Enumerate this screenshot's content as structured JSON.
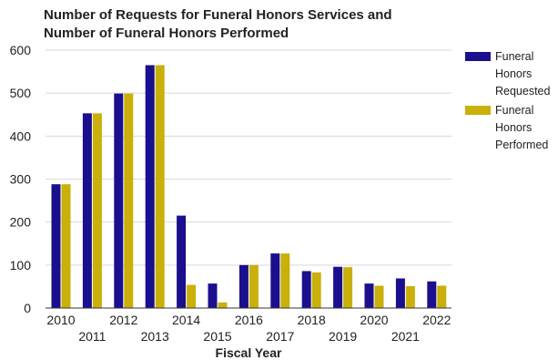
{
  "chart_data": {
    "type": "bar",
    "title_lines": [
      "Number of Requests for Funeral Honors Services and",
      "Number of Funeral Honors Performed"
    ],
    "xlabel": "Fiscal Year",
    "ylabel": "",
    "ylim": [
      0,
      600
    ],
    "yticks": [
      0,
      100,
      200,
      300,
      400,
      500,
      600
    ],
    "grid": true,
    "legend_position": "right",
    "categories": [
      "2010",
      "2011",
      "2012",
      "2013",
      "2014",
      "2015",
      "2016",
      "2017",
      "2018",
      "2019",
      "2020",
      "2021",
      "2022"
    ],
    "series": [
      {
        "name": "Funeral Honors Requested",
        "legend_lines": [
          "Funeral",
          "Honors",
          "Requested"
        ],
        "color": "#1a0f8c",
        "values": [
          288,
          453,
          499,
          565,
          215,
          57,
          100,
          127,
          86,
          96,
          57,
          69,
          62
        ]
      },
      {
        "name": "Funeral Honors Performed",
        "legend_lines": [
          "Funeral",
          "Honors",
          "Performed"
        ],
        "color": "#c9b00a",
        "values": [
          288,
          453,
          499,
          565,
          54,
          13,
          100,
          127,
          83,
          95,
          52,
          51,
          52
        ]
      }
    ]
  }
}
